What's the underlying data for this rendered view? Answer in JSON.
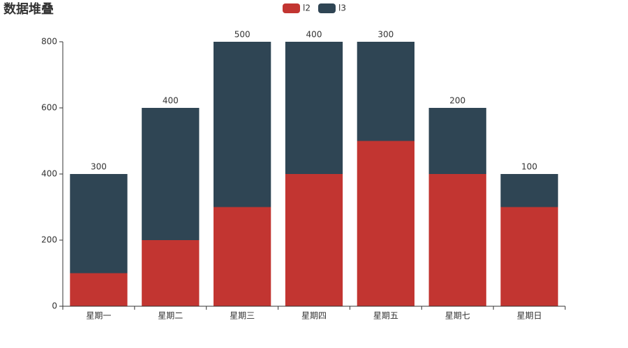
{
  "chart_data": {
    "type": "stacked_bar",
    "title": "数据堆叠",
    "categories": [
      "星期一",
      "星期二",
      "星期三",
      "星期四",
      "星期五",
      "星期七",
      "星期日"
    ],
    "series": [
      {
        "name": "l2",
        "color": "#c23531",
        "values": [
          100,
          200,
          300,
          400,
          500,
          400,
          300
        ]
      },
      {
        "name": "l3",
        "color": "#2f4554",
        "values": [
          300,
          400,
          500,
          400,
          300,
          200,
          100
        ]
      }
    ],
    "ylim": [
      0,
      800
    ],
    "yticks": [
      0,
      200,
      400,
      600,
      800
    ],
    "grid": false
  }
}
